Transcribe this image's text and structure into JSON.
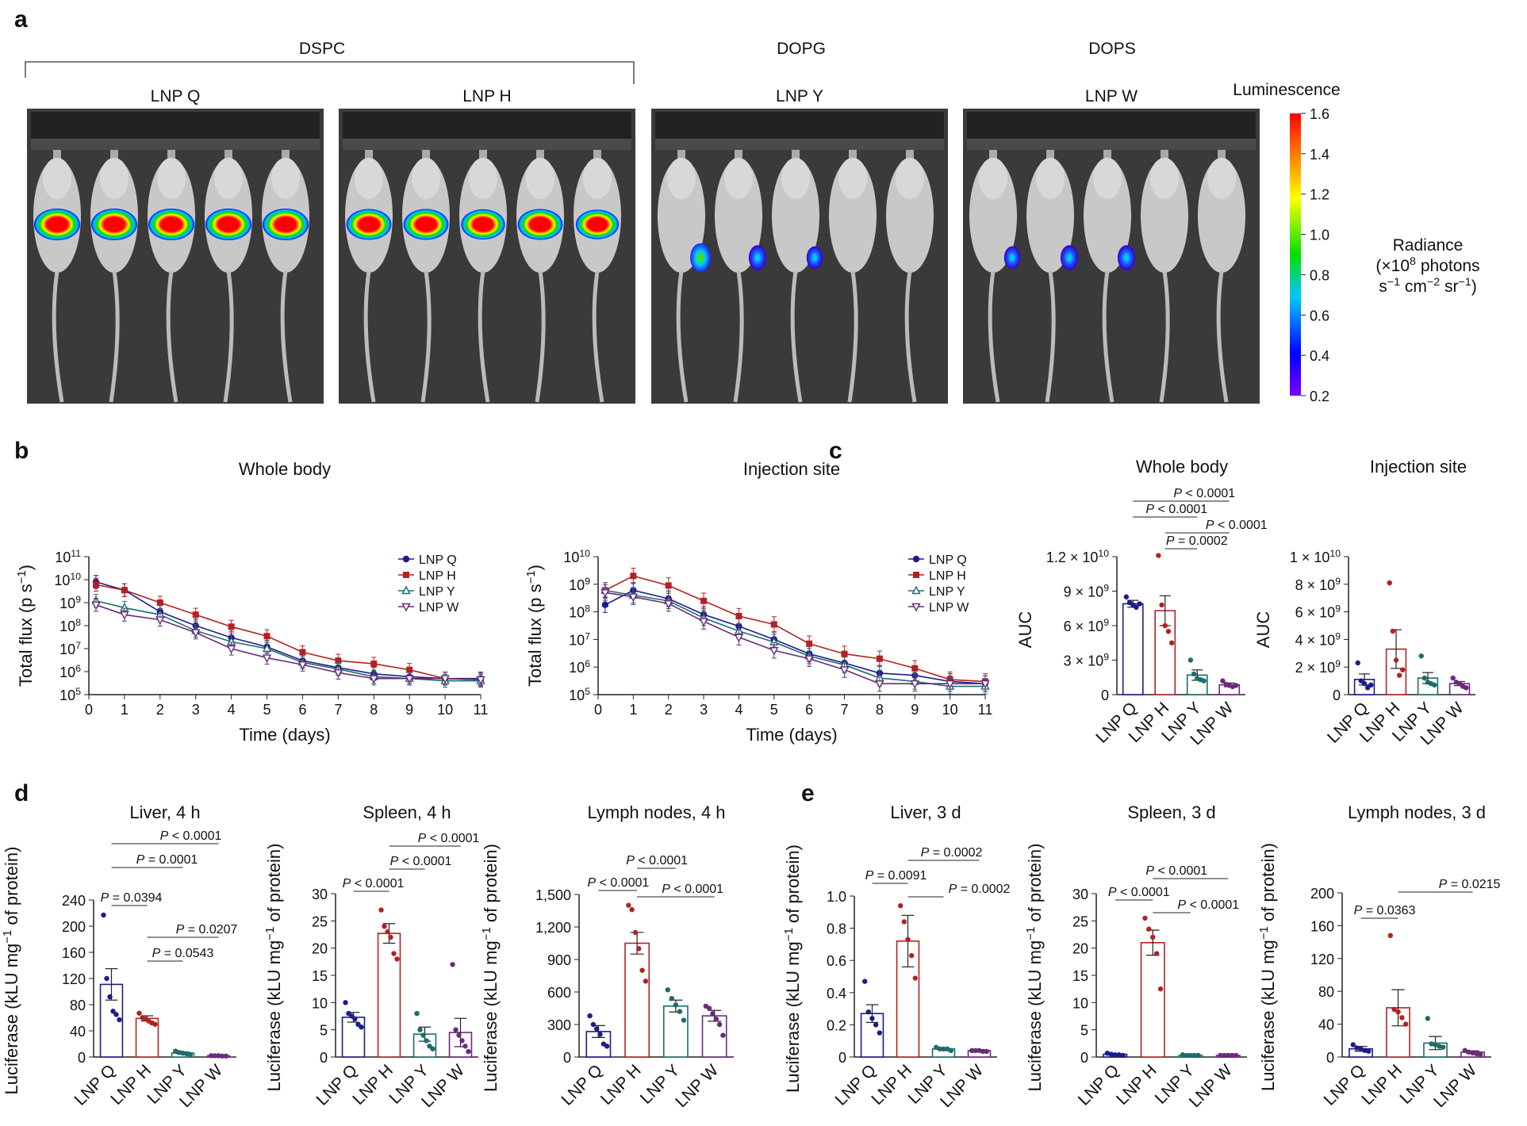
{
  "panel_labels": [
    "a",
    "b",
    "c",
    "d",
    "e"
  ],
  "panel_a": {
    "groups": [
      "DSPC",
      "DOPG",
      "DOPS"
    ],
    "images": [
      {
        "label": "LNP Q",
        "hotspots": [
          {
            "region": "liver",
            "level": 1.6
          },
          {
            "region": "liver",
            "level": 1.6
          },
          {
            "region": "liver",
            "level": 1.6
          },
          {
            "region": "liver",
            "level": 1.6
          },
          {
            "region": "liver",
            "level": 1.6
          }
        ]
      },
      {
        "label": "LNP H",
        "hotspots": [
          {
            "region": "liver",
            "level": 1.5
          },
          {
            "region": "liver",
            "level": 1.5
          },
          {
            "region": "liver",
            "level": 1.4
          },
          {
            "region": "liver",
            "level": 1.5
          },
          {
            "region": "liver",
            "level": 1.3
          }
        ]
      },
      {
        "label": "LNP Y",
        "hotspots": [
          {
            "region": "leg",
            "level": 1.1
          },
          {
            "region": "leg",
            "level": 0.9
          },
          {
            "region": "leg",
            "level": 0.8
          }
        ]
      },
      {
        "label": "LNP W",
        "hotspots": [
          {
            "region": "leg",
            "level": 0.8
          },
          {
            "region": "leg",
            "level": 0.9
          },
          {
            "region": "leg",
            "level": 0.9
          }
        ]
      }
    ],
    "colorbar": {
      "title": "Luminescence",
      "ticks": [
        "1.6",
        "1.4",
        "1.2",
        "1.0",
        "0.8",
        "0.6",
        "0.4",
        "0.2"
      ],
      "range": [
        0.2,
        1.6
      ],
      "label_line1": "Radiance",
      "label_line2": "(×10",
      "label_sup": "8",
      "label_line2b": " photons",
      "label_line3": "s",
      "label_line3b": " cm",
      "label_line3c": " sr",
      "minus1": "−1",
      "minus2": "−2"
    }
  },
  "legend_labels": [
    "LNP Q",
    "LNP H",
    "LNP Y",
    "LNP W"
  ],
  "colors": {
    "Q": "#1c1c8c",
    "H": "#b22222",
    "Y": "#1e6b6b",
    "W": "#6b2a7a"
  },
  "axis_labels": {
    "time": "Time (days)",
    "flux": "Total flux (p s",
    "flux_sup": "−1",
    "flux_end": ")",
    "auc": "AUC",
    "luc_a": "Luciferase (kLU mg",
    "luc_sup": "−1",
    "luc_b": " of protein)"
  },
  "chart_data": [
    {
      "id": "b-whole",
      "type": "line",
      "title": "Whole body",
      "xlabel": "Time (days)",
      "ylabel": "Total flux (p s−1)",
      "yscale": "log",
      "ylim": [
        100000.0,
        100000000000.0
      ],
      "x": [
        0.2,
        1,
        2,
        3,
        4,
        5,
        6,
        7,
        8,
        9,
        10,
        11
      ],
      "series": [
        {
          "name": "LNP Q",
          "values": [
            8000000000.0,
            3500000000.0,
            400000000.0,
            100000000.0,
            30000000.0,
            12000000.0,
            3000000.0,
            1500000.0,
            800000.0,
            600000.0,
            500000.0,
            500000.0
          ]
        },
        {
          "name": "LNP H",
          "values": [
            6000000000.0,
            3500000000.0,
            1000000000.0,
            300000000.0,
            90000000.0,
            35000000.0,
            7000000.0,
            3000000.0,
            2200000.0,
            1200000.0,
            500000.0,
            450000.0
          ]
        },
        {
          "name": "LNP Y",
          "values": [
            1200000000.0,
            600000000.0,
            300000000.0,
            60000000.0,
            20000000.0,
            10000000.0,
            2500000.0,
            1300000.0,
            600000.0,
            500000.0,
            400000.0,
            400000.0
          ]
        },
        {
          "name": "LNP W",
          "values": [
            800000000.0,
            300000000.0,
            180000000.0,
            50000000.0,
            10000000.0,
            4000000.0,
            2000000.0,
            900000.0,
            500000.0,
            500000.0,
            500000.0,
            450000.0
          ]
        }
      ]
    },
    {
      "id": "b-inj",
      "type": "line",
      "title": "Injection site",
      "xlabel": "Time (days)",
      "ylabel": "Total flux (p s−1)",
      "yscale": "log",
      "ylim": [
        100000.0,
        10000000000.0
      ],
      "x": [
        0.2,
        1,
        2,
        3,
        4,
        5,
        6,
        7,
        8,
        9,
        10,
        11
      ],
      "series": [
        {
          "name": "LNP Q",
          "values": [
            180000000.0,
            600000000.0,
            300000000.0,
            80000000.0,
            30000000.0,
            10000000.0,
            3000000.0,
            1400000.0,
            600000.0,
            500000.0,
            300000.0,
            250000.0
          ]
        },
        {
          "name": "LNP H",
          "values": [
            600000000.0,
            2000000000.0,
            900000000.0,
            250000000.0,
            70000000.0,
            35000000.0,
            7000000.0,
            3000000.0,
            2000000.0,
            900000.0,
            350000.0,
            300000.0
          ]
        },
        {
          "name": "LNP Y",
          "values": [
            600000000.0,
            400000000.0,
            250000000.0,
            60000000.0,
            20000000.0,
            8000000.0,
            2500000.0,
            1200000.0,
            400000.0,
            300000.0,
            200000.0,
            200000.0
          ]
        },
        {
          "name": "LNP W",
          "values": [
            500000000.0,
            350000000.0,
            200000000.0,
            45000000.0,
            12000000.0,
            4000000.0,
            2000000.0,
            800000.0,
            250000.0,
            250000.0,
            250000.0,
            250000.0
          ]
        }
      ]
    },
    {
      "id": "c-whole",
      "type": "bar",
      "title": "Whole body",
      "ylabel": "AUC",
      "ylim": [
        0,
        12000000000.0
      ],
      "categories": [
        "LNP Q",
        "LNP H",
        "LNP Y",
        "LNP W"
      ],
      "yticks": [
        {
          "v": 0,
          "t": "0"
        },
        {
          "v": 3000000000.0,
          "t": "3 × 10",
          "e": "9"
        },
        {
          "v": 6000000000.0,
          "t": "6 × 10",
          "e": "9"
        },
        {
          "v": 9000000000.0,
          "t": "9 × 10",
          "e": "9"
        },
        {
          "v": 12000000000.0,
          "t": "1.2 × 10",
          "e": "10"
        }
      ],
      "values": [
        7900000000.0,
        7300000000.0,
        1700000000.0,
        850000000.0
      ],
      "errors": [
        300000000.0,
        1300000000.0,
        450000000.0,
        160000000.0
      ],
      "points": [
        [
          8500000000.0,
          8000000000.0,
          7800000000.0,
          7600000000.0,
          7900000000.0
        ],
        [
          12100000000.0,
          7800000000.0,
          6000000000.0,
          5500000000.0,
          4500000000.0
        ],
        [
          3000000000.0,
          1800000000.0,
          1400000000.0,
          1300000000.0,
          1200000000.0
        ],
        [
          1200000000.0,
          900000000.0,
          800000000.0,
          700000000.0,
          800000000.0
        ]
      ],
      "comparisons": [
        {
          "a": 0,
          "b": 3,
          "p": "P < 0.0001"
        },
        {
          "a": 0,
          "b": 2,
          "p": "P < 0.0001"
        },
        {
          "a": 1,
          "b": 3,
          "p": "P < 0.0001"
        },
        {
          "a": 1,
          "b": 2,
          "p": "P = 0.0002"
        }
      ]
    },
    {
      "id": "c-inj",
      "type": "bar",
      "title": "Injection site",
      "ylabel": "AUC",
      "ylim": [
        0,
        10000000000.0
      ],
      "categories": [
        "LNP Q",
        "LNP H",
        "LNP Y",
        "LNP W"
      ],
      "yticks": [
        {
          "v": 0,
          "t": "0"
        },
        {
          "v": 2000000000.0,
          "t": "2 × 10",
          "e": "9"
        },
        {
          "v": 4000000000.0,
          "t": "4 × 10",
          "e": "9"
        },
        {
          "v": 6000000000.0,
          "t": "6 × 10",
          "e": "9"
        },
        {
          "v": 8000000000.0,
          "t": "8 × 10",
          "e": "9"
        },
        {
          "v": 10000000000.0,
          "t": "1 × 10",
          "e": "10"
        }
      ],
      "values": [
        1100000000.0,
        3300000000.0,
        1200000000.0,
        800000000.0
      ],
      "errors": [
        400000000.0,
        1400000000.0,
        400000000.0,
        150000000.0
      ],
      "points": [
        [
          2300000000.0,
          1000000000.0,
          800000000.0,
          500000000.0,
          700000000.0
        ],
        [
          8100000000.0,
          4600000000.0,
          2500000000.0,
          1400000000.0,
          1800000000.0
        ],
        [
          2800000000.0,
          1200000000.0,
          900000000.0,
          800000000.0,
          700000000.0
        ],
        [
          1200000000.0,
          900000000.0,
          800000000.0,
          600000000.0,
          500000000.0
        ]
      ],
      "comparisons": []
    },
    {
      "id": "d-liver",
      "type": "bar",
      "title": "Liver, 4 h",
      "ylim": [
        0,
        240
      ],
      "categories": [
        "LNP Q",
        "LNP H",
        "LNP Y",
        "LNP W"
      ],
      "yticks": [
        {
          "v": 0,
          "t": "0"
        },
        {
          "v": 40,
          "t": "40"
        },
        {
          "v": 80,
          "t": "80"
        },
        {
          "v": 120,
          "t": "120"
        },
        {
          "v": 160,
          "t": "160"
        },
        {
          "v": 200,
          "t": "200"
        },
        {
          "v": 240,
          "t": "240"
        }
      ],
      "values": [
        111,
        59,
        6,
        2
      ],
      "errors": [
        24,
        4,
        1.5,
        0.5
      ],
      "points": [
        [
          217,
          120,
          92,
          70,
          65,
          57
        ],
        [
          67,
          60,
          58,
          55,
          52,
          50
        ],
        [
          9,
          7,
          6,
          5,
          4
        ],
        [
          2,
          2,
          2,
          1.5,
          1.5
        ]
      ],
      "comparisons": [
        {
          "a": 0,
          "b": 3,
          "p": "P < 0.0001"
        },
        {
          "a": 0,
          "b": 2,
          "p": "P = 0.0001"
        },
        {
          "a": 0,
          "b": 1,
          "p": "P = 0.0394"
        },
        {
          "a": 1,
          "b": 3,
          "p": "P = 0.0207"
        },
        {
          "a": 1,
          "b": 2,
          "p": "P = 0.0543"
        }
      ]
    },
    {
      "id": "d-spleen",
      "type": "bar",
      "title": "Spleen, 4 h",
      "ylim": [
        0,
        30
      ],
      "categories": [
        "LNP Q",
        "LNP H",
        "LNP Y",
        "LNP W"
      ],
      "yticks": [
        {
          "v": 0,
          "t": "0"
        },
        {
          "v": 5,
          "t": "5"
        },
        {
          "v": 10,
          "t": "10"
        },
        {
          "v": 15,
          "t": "15"
        },
        {
          "v": 20,
          "t": "20"
        },
        {
          "v": 25,
          "t": "25"
        },
        {
          "v": 30,
          "t": "30"
        }
      ],
      "values": [
        7.3,
        22.7,
        4.2,
        4.5
      ],
      "errors": [
        0.9,
        1.8,
        1.3,
        2.6
      ],
      "points": [
        [
          10,
          8,
          7.5,
          7,
          6,
          5.5
        ],
        [
          27,
          24,
          23,
          22,
          19,
          18
        ],
        [
          8,
          5,
          4,
          3,
          2,
          1.5
        ],
        [
          17,
          5,
          4,
          3,
          2,
          1
        ]
      ],
      "comparisons": [
        {
          "a": 1,
          "b": 3,
          "p": "P < 0.0001"
        },
        {
          "a": 1,
          "b": 2,
          "p": "P < 0.0001"
        },
        {
          "a": 0,
          "b": 1,
          "p": "P < 0.0001"
        }
      ]
    },
    {
      "id": "d-lymph",
      "type": "bar",
      "title": "Lymph nodes, 4 h",
      "ylim": [
        0,
        1500
      ],
      "categories": [
        "LNP Q",
        "LNP H",
        "LNP Y",
        "LNP W"
      ],
      "yticks": [
        {
          "v": 0,
          "t": "0"
        },
        {
          "v": 300,
          "t": "300"
        },
        {
          "v": 600,
          "t": "600"
        },
        {
          "v": 900,
          "t": "900"
        },
        {
          "v": 1200,
          "t": "1,200"
        },
        {
          "v": 1500,
          "t": "1,500"
        }
      ],
      "values": [
        235,
        1050,
        470,
        380
      ],
      "errors": [
        55,
        100,
        55,
        50
      ],
      "points": [
        [
          380,
          300,
          260,
          210,
          120,
          100
        ],
        [
          1400,
          1360,
          1150,
          1000,
          800,
          700
        ],
        [
          620,
          540,
          480,
          420,
          340
        ],
        [
          470,
          450,
          400,
          350,
          300,
          200
        ]
      ],
      "comparisons": [
        {
          "a": 0,
          "b": 1,
          "p": "P < 0.0001"
        },
        {
          "a": 1,
          "b": 2,
          "p": "P < 0.0001"
        },
        {
          "a": 1,
          "b": 3,
          "p": "P < 0.0001"
        }
      ]
    },
    {
      "id": "e-liver",
      "type": "bar",
      "title": "Liver, 3 d",
      "ylim": [
        0,
        1.0
      ],
      "categories": [
        "LNP Q",
        "LNP H",
        "LNP Y",
        "LNP W"
      ],
      "yticks": [
        {
          "v": 0,
          "t": "0"
        },
        {
          "v": 0.2,
          "t": "0.2"
        },
        {
          "v": 0.4,
          "t": "0.4"
        },
        {
          "v": 0.6,
          "t": "0.6"
        },
        {
          "v": 0.8,
          "t": "0.8"
        },
        {
          "v": 1.0,
          "t": "1.0"
        }
      ],
      "values": [
        0.27,
        0.72,
        0.05,
        0.04
      ],
      "errors": [
        0.055,
        0.16,
        0.005,
        0.005
      ],
      "points": [
        [
          0.47,
          0.28,
          0.24,
          0.2,
          0.15
        ],
        [
          0.94,
          0.84,
          0.73,
          0.63,
          0.49
        ],
        [
          0.06,
          0.05,
          0.05,
          0.05,
          0.04
        ],
        [
          0.04,
          0.04,
          0.04,
          0.035,
          0.035
        ]
      ],
      "comparisons": [
        {
          "a": 0,
          "b": 1,
          "p": "P = 0.0091"
        },
        {
          "a": 1,
          "b": 3,
          "p": "P = 0.0002"
        },
        {
          "a": 1,
          "b": 2,
          "p": "P = 0.0002"
        }
      ]
    },
    {
      "id": "e-spleen",
      "type": "bar",
      "title": "Spleen, 3 d",
      "ylim": [
        0,
        30
      ],
      "categories": [
        "LNP Q",
        "LNP H",
        "LNP Y",
        "LNP W"
      ],
      "yticks": [
        {
          "v": 0,
          "t": "0"
        },
        {
          "v": 5,
          "t": "5"
        },
        {
          "v": 10,
          "t": "10"
        },
        {
          "v": 15,
          "t": "15"
        },
        {
          "v": 20,
          "t": "20"
        },
        {
          "v": 25,
          "t": "25"
        },
        {
          "v": 30,
          "t": "30"
        }
      ],
      "values": [
        0.5,
        21,
        0.3,
        0.3
      ],
      "errors": [
        0.1,
        2.3,
        0.05,
        0.05
      ],
      "points": [
        [
          0.7,
          0.5,
          0.4,
          0.4,
          0.3
        ],
        [
          25.5,
          23.5,
          22,
          19,
          12.5
        ],
        [
          0.4,
          0.3,
          0.3,
          0.3,
          0.3
        ],
        [
          0.3,
          0.3,
          0.3,
          0.3,
          0.3
        ]
      ],
      "comparisons": [
        {
          "a": 0,
          "b": 1,
          "p": "P < 0.0001"
        },
        {
          "a": 1,
          "b": 3,
          "p": "P < 0.0001"
        },
        {
          "a": 1,
          "b": 2,
          "p": "P < 0.0001"
        }
      ]
    },
    {
      "id": "e-lymph",
      "type": "bar",
      "title": "Lymph nodes, 3 d",
      "ylim": [
        0,
        200
      ],
      "categories": [
        "LNP Q",
        "LNP H",
        "LNP Y",
        "LNP W"
      ],
      "yticks": [
        {
          "v": 0,
          "t": "0"
        },
        {
          "v": 40,
          "t": "40"
        },
        {
          "v": 80,
          "t": "80"
        },
        {
          "v": 120,
          "t": "120"
        },
        {
          "v": 160,
          "t": "160"
        },
        {
          "v": 200,
          "t": "200"
        }
      ],
      "values": [
        10,
        60,
        17,
        6
      ],
      "errors": [
        3,
        22,
        8,
        1.5
      ],
      "points": [
        [
          15,
          11,
          10,
          8,
          7
        ],
        [
          148,
          58,
          55,
          48,
          40
        ],
        [
          47,
          16,
          15,
          13,
          12
        ],
        [
          8,
          6,
          5,
          4,
          3
        ]
      ],
      "comparisons": [
        {
          "a": 0,
          "b": 1,
          "p": "P = 0.0363"
        },
        {
          "a": 1,
          "b": 3,
          "p": "P = 0.0215"
        }
      ]
    }
  ]
}
